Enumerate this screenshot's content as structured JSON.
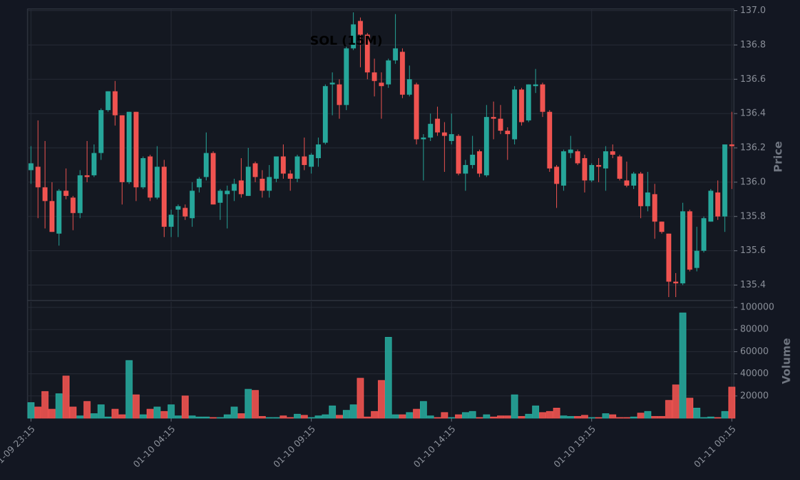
{
  "chart_data": {
    "type": "candlestick",
    "title": "SOL (15M)",
    "y_label": "Price",
    "volume_label": "Volume",
    "categories": [
      "01-09 23:15",
      null,
      null,
      null,
      null,
      null,
      null,
      null,
      null,
      null,
      null,
      null,
      null,
      null,
      null,
      null,
      null,
      null,
      null,
      null,
      "01-10 04:15",
      null,
      null,
      null,
      null,
      null,
      null,
      null,
      null,
      null,
      null,
      null,
      null,
      null,
      null,
      null,
      null,
      null,
      null,
      null,
      "01-10 09:15",
      null,
      null,
      null,
      null,
      null,
      null,
      null,
      null,
      null,
      null,
      null,
      null,
      null,
      null,
      null,
      null,
      null,
      null,
      null,
      "01-10 14:15",
      null,
      null,
      null,
      null,
      null,
      null,
      null,
      null,
      null,
      null,
      null,
      null,
      null,
      null,
      null,
      null,
      null,
      null,
      null,
      "01-10 19:15",
      null,
      null,
      null,
      null,
      null,
      null,
      null,
      null,
      null,
      null,
      null,
      null,
      null,
      null,
      null,
      null,
      null,
      null,
      null,
      "01-11 00:15"
    ],
    "open": [
      136.07,
      136.09,
      135.97,
      135.89,
      135.7,
      135.95,
      135.91,
      135.82,
      136.04,
      136.04,
      136.17,
      136.42,
      136.53,
      136.39,
      136.0,
      136.41,
      135.97,
      136.15,
      135.91,
      136.09,
      135.74,
      135.84,
      135.85,
      135.79,
      135.97,
      136.03,
      136.17,
      135.88,
      135.93,
      135.95,
      136.01,
      135.92,
      136.11,
      136.02,
      135.95,
      136.02,
      136.15,
      136.05,
      136.02,
      136.15,
      136.09,
      136.14,
      136.23,
      136.57,
      136.57,
      136.45,
      136.78,
      136.94,
      136.86,
      136.64,
      136.58,
      136.57,
      136.71,
      136.76,
      136.51,
      136.57,
      136.25,
      136.26,
      136.37,
      136.29,
      136.24,
      136.27,
      136.05,
      136.1,
      136.18,
      136.04,
      136.38,
      136.37,
      136.3,
      136.25,
      136.54,
      136.36,
      136.56,
      136.57,
      136.41,
      136.09,
      135.98,
      136.17,
      136.18,
      136.14,
      136.01,
      136.1,
      136.08,
      136.18,
      136.15,
      136.01,
      135.98,
      136.05,
      135.86,
      135.93,
      135.77,
      135.7,
      135.42,
      135.41,
      135.83,
      135.5,
      135.6,
      135.77,
      135.94,
      135.8,
      136.22
    ],
    "high": [
      136.21,
      136.36,
      136.24,
      136.0,
      135.96,
      136.08,
      135.92,
      136.07,
      136.24,
      136.22,
      136.43,
      136.53,
      136.59,
      136.39,
      136.41,
      136.41,
      136.15,
      136.16,
      136.21,
      136.13,
      135.84,
      135.87,
      135.87,
      136.0,
      136.03,
      136.29,
      136.18,
      135.96,
      135.98,
      136.02,
      136.14,
      136.2,
      136.12,
      136.07,
      136.1,
      136.15,
      136.22,
      136.07,
      136.16,
      136.26,
      136.17,
      136.26,
      136.57,
      136.64,
      136.6,
      136.79,
      136.99,
      136.96,
      136.87,
      136.72,
      136.64,
      136.72,
      136.98,
      136.78,
      136.68,
      136.58,
      136.28,
      136.4,
      136.44,
      136.35,
      136.4,
      136.28,
      136.13,
      136.27,
      136.19,
      136.45,
      136.47,
      136.45,
      136.32,
      136.56,
      136.55,
      136.57,
      136.66,
      136.58,
      136.42,
      136.1,
      136.19,
      136.27,
      136.19,
      136.16,
      136.11,
      136.14,
      136.21,
      136.22,
      136.16,
      136.12,
      136.06,
      136.06,
      136.06,
      135.99,
      135.77,
      135.7,
      135.47,
      135.88,
      135.84,
      135.74,
      135.8,
      135.96,
      136.01,
      136.22,
      136.41
    ],
    "low": [
      135.99,
      135.79,
      135.73,
      135.71,
      135.63,
      135.9,
      135.72,
      135.79,
      136.0,
      136.03,
      136.13,
      136.41,
      136.33,
      135.87,
      135.99,
      135.89,
      135.96,
      135.89,
      135.9,
      135.68,
      135.68,
      135.68,
      135.78,
      135.74,
      135.94,
      136.01,
      135.87,
      135.78,
      135.73,
      135.89,
      135.91,
      135.92,
      136.0,
      135.91,
      135.91,
      136.0,
      136.02,
      135.95,
      136.0,
      136.07,
      136.05,
      136.09,
      136.22,
      136.39,
      136.37,
      136.42,
      136.77,
      136.67,
      136.6,
      136.5,
      136.37,
      136.55,
      136.69,
      136.49,
      136.5,
      136.22,
      136.01,
      136.24,
      136.27,
      136.06,
      136.22,
      136.04,
      135.95,
      136.08,
      136.03,
      136.03,
      136.25,
      136.28,
      136.13,
      136.22,
      136.33,
      136.35,
      136.52,
      136.38,
      136.06,
      135.85,
      135.95,
      136.14,
      136.1,
      135.94,
      136.0,
      136.0,
      135.95,
      136.14,
      136.01,
      135.97,
      135.96,
      135.79,
      135.83,
      135.67,
      135.7,
      135.33,
      135.33,
      135.4,
      135.48,
      135.48,
      135.59,
      135.77,
      135.78,
      135.71,
      135.96
    ],
    "close": [
      136.11,
      135.97,
      135.89,
      135.71,
      135.95,
      135.92,
      135.82,
      136.04,
      136.03,
      136.17,
      136.42,
      136.53,
      136.39,
      136.0,
      136.41,
      135.97,
      136.14,
      135.91,
      136.09,
      135.74,
      135.81,
      135.86,
      135.8,
      135.95,
      136.02,
      136.17,
      135.87,
      135.95,
      135.95,
      135.99,
      135.93,
      136.09,
      136.03,
      135.95,
      136.03,
      136.15,
      136.05,
      136.02,
      136.15,
      136.1,
      136.16,
      136.22,
      136.56,
      136.58,
      136.45,
      136.78,
      136.92,
      136.86,
      136.64,
      136.59,
      136.56,
      136.71,
      136.78,
      136.51,
      136.6,
      136.25,
      136.26,
      136.34,
      136.29,
      136.27,
      136.28,
      136.05,
      136.1,
      136.16,
      136.05,
      136.38,
      136.37,
      136.3,
      136.28,
      136.54,
      136.35,
      136.57,
      136.57,
      136.41,
      136.08,
      135.99,
      136.18,
      136.19,
      136.11,
      136.01,
      136.1,
      136.09,
      136.18,
      136.16,
      136.02,
      135.98,
      136.05,
      135.86,
      135.94,
      135.77,
      135.71,
      135.42,
      135.41,
      135.83,
      135.49,
      135.6,
      135.79,
      135.95,
      135.8,
      136.22,
      136.21
    ],
    "volume": [
      14000,
      10000,
      24000,
      8000,
      22000,
      38000,
      10000,
      2000,
      15000,
      4000,
      12000,
      1000,
      8000,
      3000,
      52000,
      21000,
      3000,
      8000,
      10000,
      6000,
      12000,
      2000,
      20000,
      2000,
      1000,
      1000,
      500,
      500,
      3000,
      10000,
      4000,
      26000,
      25000,
      1500,
      500,
      500,
      2000,
      500,
      3500,
      2500,
      500,
      2000,
      3000,
      11000,
      2500,
      7000,
      12000,
      36000,
      1000,
      6000,
      34000,
      73000,
      3000,
      3000,
      5000,
      8000,
      15000,
      2000,
      500,
      5000,
      500,
      3000,
      5000,
      6000,
      500,
      3000,
      1000,
      2000,
      2000,
      21000,
      1500,
      3500,
      11000,
      5000,
      6000,
      9000,
      2000,
      1500,
      1500,
      2500,
      500,
      500,
      4000,
      3000,
      500,
      500,
      1000,
      4500,
      6000,
      1500,
      1500,
      16000,
      30000,
      95000,
      18000,
      9000,
      500,
      1000,
      500,
      6000,
      28000
    ],
    "up_color": "#26a69a",
    "down_color": "#ef5350",
    "ylim": [
      135.31,
      137.01
    ],
    "yticks": [
      {
        "value": 135.4,
        "label": "135.4"
      },
      {
        "value": 135.6,
        "label": "135.6"
      },
      {
        "value": 135.8,
        "label": "135.8"
      },
      {
        "value": 136,
        "label": "136.0"
      },
      {
        "value": 136.2,
        "label": "136.2"
      },
      {
        "value": 136.4,
        "label": "136.4"
      },
      {
        "value": 136.6,
        "label": "136.6"
      },
      {
        "value": 136.8,
        "label": "136.8"
      },
      {
        "value": 137,
        "label": "137.0"
      }
    ],
    "volume_ylim": [
      0,
      105000
    ],
    "volume_yticks": [
      20000,
      40000,
      60000,
      80000,
      100000
    ],
    "grid": true
  }
}
